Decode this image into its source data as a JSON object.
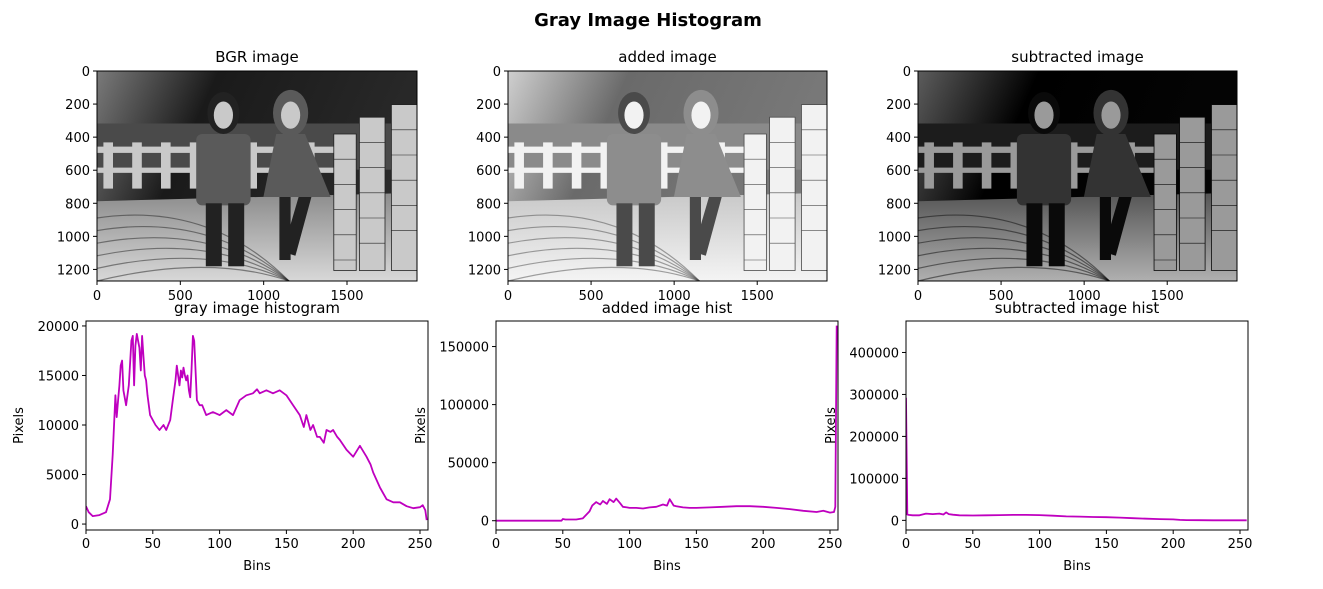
{
  "figure": {
    "suptitle": "Gray Image Histogram"
  },
  "images": [
    {
      "title": "BGR image",
      "variant": "original",
      "x_ticks": [
        0,
        500,
        1000,
        1500
      ],
      "y_ticks": [
        0,
        200,
        400,
        600,
        800,
        1000,
        1200
      ],
      "xlim": [
        0,
        1920
      ],
      "ylim": [
        1270,
        0
      ]
    },
    {
      "title": "added image",
      "variant": "added",
      "x_ticks": [
        0,
        500,
        1000,
        1500
      ],
      "y_ticks": [
        0,
        200,
        400,
        600,
        800,
        1000,
        1200
      ],
      "xlim": [
        0,
        1920
      ],
      "ylim": [
        1270,
        0
      ]
    },
    {
      "title": "subtracted image",
      "variant": "subtracted",
      "x_ticks": [
        0,
        500,
        1000,
        1500
      ],
      "y_ticks": [
        0,
        200,
        400,
        600,
        800,
        1000,
        1200
      ],
      "xlim": [
        0,
        1920
      ],
      "ylim": [
        1270,
        0
      ]
    }
  ],
  "chart_data": [
    {
      "type": "line",
      "title": "gray image histogram",
      "xlabel": "Bins",
      "ylabel": "Pixels",
      "xlim": [
        0,
        256
      ],
      "ylim": [
        -600,
        20500
      ],
      "x_ticks": [
        0,
        50,
        100,
        150,
        200,
        250
      ],
      "y_ticks": [
        0,
        5000,
        10000,
        15000,
        20000
      ],
      "color": "#bf00bf",
      "x": [
        0,
        2,
        5,
        10,
        15,
        18,
        20,
        22,
        23,
        24,
        25,
        26,
        27,
        28,
        30,
        32,
        34,
        35,
        36,
        37,
        38,
        40,
        41,
        42,
        43,
        44,
        45,
        46,
        48,
        50,
        52,
        55,
        58,
        60,
        63,
        65,
        67,
        68,
        70,
        71,
        72,
        73,
        74,
        75,
        76,
        77,
        78,
        79,
        80,
        81,
        83,
        85,
        87,
        90,
        95,
        100,
        105,
        110,
        115,
        120,
        125,
        128,
        130,
        135,
        140,
        145,
        150,
        155,
        160,
        163,
        165,
        168,
        170,
        173,
        175,
        178,
        180,
        183,
        185,
        188,
        190,
        195,
        200,
        205,
        210,
        213,
        215,
        220,
        225,
        230,
        235,
        240,
        245,
        250,
        252,
        254,
        255
      ],
      "y": [
        1800,
        1200,
        800,
        900,
        1200,
        2500,
        7000,
        13000,
        10800,
        12500,
        14000,
        16000,
        16500,
        13500,
        12000,
        14000,
        18500,
        19000,
        14000,
        18000,
        19200,
        17800,
        15500,
        19000,
        17000,
        15000,
        14500,
        13000,
        11000,
        10500,
        10000,
        9500,
        10000,
        9500,
        10500,
        12500,
        14500,
        16000,
        14000,
        15500,
        14800,
        15800,
        15000,
        14500,
        15000,
        13500,
        12800,
        15500,
        19000,
        18500,
        12500,
        12000,
        12000,
        11000,
        11300,
        11000,
        11500,
        11000,
        12500,
        13000,
        13200,
        13600,
        13200,
        13500,
        13200,
        13500,
        13000,
        12000,
        11000,
        9800,
        11000,
        9500,
        10000,
        8800,
        8800,
        8200,
        9500,
        9300,
        9500,
        8800,
        8500,
        7500,
        6800,
        7900,
        6800,
        6000,
        5200,
        3700,
        2500,
        2200,
        2200,
        1800,
        1600,
        1700,
        1900,
        1400,
        400
      ]
    },
    {
      "type": "line",
      "title": "added image hist",
      "xlabel": "Bins",
      "ylabel": "Pixels",
      "xlim": [
        0,
        256
      ],
      "ylim": [
        -8000,
        172000
      ],
      "x_ticks": [
        0,
        50,
        100,
        150,
        200,
        250
      ],
      "y_ticks": [
        0,
        50000,
        100000,
        150000
      ],
      "color": "#bf00bf",
      "x": [
        0,
        10,
        20,
        30,
        40,
        49,
        50,
        52,
        60,
        65,
        70,
        72,
        75,
        78,
        80,
        83,
        85,
        88,
        90,
        93,
        95,
        98,
        100,
        105,
        110,
        115,
        120,
        125,
        128,
        130,
        133,
        135,
        140,
        145,
        150,
        160,
        170,
        180,
        190,
        200,
        210,
        220,
        230,
        240,
        245,
        250,
        253,
        254,
        255
      ],
      "y": [
        0,
        0,
        0,
        0,
        0,
        0,
        1500,
        1000,
        1000,
        2000,
        8000,
        13000,
        16000,
        14000,
        17000,
        14500,
        18500,
        16000,
        19000,
        15000,
        12000,
        11500,
        11000,
        11000,
        10500,
        11500,
        12000,
        14000,
        13000,
        18500,
        13000,
        12500,
        11500,
        11000,
        11000,
        11500,
        12000,
        12500,
        12500,
        12000,
        11000,
        10000,
        8500,
        7500,
        8500,
        7000,
        7500,
        12000,
        168000
      ]
    },
    {
      "type": "line",
      "title": "subtracted image hist",
      "xlabel": "Bins",
      "ylabel": "Pixels",
      "xlim": [
        0,
        256
      ],
      "ylim": [
        -23000,
        475000
      ],
      "x_ticks": [
        0,
        50,
        100,
        150,
        200,
        250
      ],
      "y_ticks": [
        0,
        100000,
        200000,
        300000,
        400000
      ],
      "color": "#bf00bf",
      "x": [
        0,
        1,
        2,
        5,
        10,
        15,
        20,
        25,
        28,
        30,
        32,
        35,
        40,
        50,
        60,
        70,
        80,
        90,
        100,
        110,
        120,
        130,
        140,
        150,
        160,
        170,
        180,
        190,
        200,
        205,
        210,
        220,
        230,
        240,
        250,
        255
      ],
      "y": [
        292000,
        14000,
        13000,
        12000,
        12000,
        16000,
        15000,
        16000,
        14000,
        19000,
        15000,
        13500,
        12000,
        11500,
        12000,
        12500,
        13000,
        13000,
        12500,
        11000,
        9500,
        9000,
        8000,
        7500,
        6500,
        5000,
        4000,
        3000,
        2200,
        1000,
        500,
        300,
        200,
        100,
        0,
        0
      ]
    }
  ]
}
